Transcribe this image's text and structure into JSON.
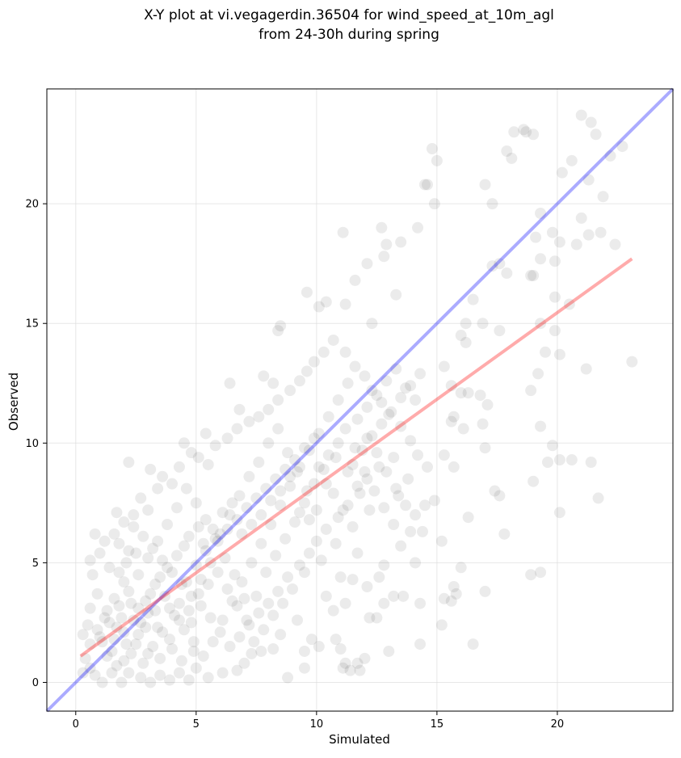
{
  "chart_data": {
    "type": "scatter",
    "title_lines": [
      "X-Y plot at vi.vegagerdin.36504 for wind_speed_at_10m_agl",
      "from 24-30h during spring"
    ],
    "xlabel": "Simulated",
    "ylabel": "Observed",
    "xlim": [
      -1.2,
      24.8
    ],
    "ylim": [
      -1.2,
      24.8
    ],
    "xticks": [
      0,
      5,
      10,
      15,
      20
    ],
    "yticks": [
      0,
      5,
      10,
      15,
      20
    ],
    "grid": true,
    "point_color": "#000000",
    "point_alpha": 0.08,
    "identity_line": {
      "x": [
        -1.2,
        24.8
      ],
      "y": [
        -1.2,
        24.8
      ],
      "color": "#0000ff"
    },
    "fit_line": {
      "x": [
        0.2,
        23.1
      ],
      "y": [
        1.1,
        17.7
      ],
      "color": "#ff0000"
    },
    "points": [
      [
        1.2,
        5.9
      ],
      [
        2.2,
        9.2
      ],
      [
        3.1,
        8.9
      ],
      [
        4.5,
        10.0
      ],
      [
        5.4,
        10.4
      ],
      [
        6.4,
        12.5
      ],
      [
        6.8,
        11.4
      ],
      [
        7.8,
        12.8
      ],
      [
        8.2,
        12.5
      ],
      [
        8.4,
        14.7
      ],
      [
        8.5,
        14.9
      ],
      [
        9.6,
        16.3
      ],
      [
        10.1,
        15.7
      ],
      [
        10.4,
        15.9
      ],
      [
        11.1,
        18.8
      ],
      [
        11.2,
        15.8
      ],
      [
        11.6,
        16.8
      ],
      [
        12.1,
        17.5
      ],
      [
        12.3,
        15.0
      ],
      [
        12.8,
        17.8
      ],
      [
        12.9,
        18.3
      ],
      [
        12.7,
        19.0
      ],
      [
        13.3,
        16.2
      ],
      [
        13.5,
        18.4
      ],
      [
        14.2,
        19.0
      ],
      [
        14.5,
        20.8
      ],
      [
        14.6,
        20.8
      ],
      [
        14.8,
        22.3
      ],
      [
        15.0,
        21.8
      ],
      [
        14.9,
        20.0
      ],
      [
        17.0,
        20.8
      ],
      [
        17.3,
        20.0
      ],
      [
        17.9,
        22.2
      ],
      [
        18.1,
        21.9
      ],
      [
        18.2,
        23.0
      ],
      [
        18.6,
        23.1
      ],
      [
        18.7,
        23.0
      ],
      [
        19.0,
        22.9
      ],
      [
        20.2,
        21.3
      ],
      [
        21.0,
        23.7
      ],
      [
        21.4,
        23.4
      ],
      [
        21.6,
        22.9
      ],
      [
        22.2,
        22.0
      ],
      [
        22.7,
        22.4
      ],
      [
        21.3,
        21.0
      ],
      [
        20.6,
        21.8
      ],
      [
        19.3,
        19.6
      ],
      [
        19.1,
        18.6
      ],
      [
        19.8,
        18.8
      ],
      [
        20.1,
        18.4
      ],
      [
        21.0,
        19.4
      ],
      [
        21.3,
        18.7
      ],
      [
        21.8,
        18.8
      ],
      [
        21.9,
        20.3
      ],
      [
        22.4,
        18.3
      ],
      [
        20.8,
        18.3
      ],
      [
        19.9,
        17.6
      ],
      [
        19.3,
        17.7
      ],
      [
        18.9,
        17.0
      ],
      [
        19.0,
        17.0
      ],
      [
        17.9,
        17.1
      ],
      [
        17.6,
        17.5
      ],
      [
        17.3,
        17.4
      ],
      [
        16.5,
        16.0
      ],
      [
        16.2,
        15.0
      ],
      [
        16.9,
        15.0
      ],
      [
        17.6,
        14.7
      ],
      [
        19.3,
        15.0
      ],
      [
        19.9,
        14.7
      ],
      [
        19.5,
        13.8
      ],
      [
        20.1,
        13.7
      ],
      [
        19.9,
        16.1
      ],
      [
        20.5,
        15.8
      ],
      [
        21.2,
        13.1
      ],
      [
        19.2,
        12.9
      ],
      [
        18.9,
        12.2
      ],
      [
        23.1,
        13.4
      ],
      [
        16.0,
        14.5
      ],
      [
        16.2,
        14.2
      ],
      [
        15.3,
        13.2
      ],
      [
        15.6,
        12.4
      ],
      [
        16.0,
        12.1
      ],
      [
        16.3,
        12.1
      ],
      [
        16.8,
        12.0
      ],
      [
        17.1,
        11.6
      ],
      [
        16.9,
        10.8
      ],
      [
        15.7,
        11.1
      ],
      [
        15.6,
        10.9
      ],
      [
        16.1,
        10.6
      ],
      [
        17.0,
        9.8
      ],
      [
        19.3,
        10.7
      ],
      [
        19.8,
        9.9
      ],
      [
        20.1,
        9.3
      ],
      [
        20.6,
        9.3
      ],
      [
        21.4,
        9.2
      ],
      [
        19.6,
        9.2
      ],
      [
        19.0,
        8.4
      ],
      [
        15.3,
        9.5
      ],
      [
        15.7,
        9.0
      ],
      [
        17.4,
        8.0
      ],
      [
        17.6,
        7.8
      ],
      [
        21.7,
        7.7
      ],
      [
        20.1,
        7.1
      ],
      [
        16.3,
        6.9
      ],
      [
        17.8,
        6.2
      ],
      [
        15.2,
        5.9
      ],
      [
        16.0,
        4.8
      ],
      [
        15.7,
        4.0
      ],
      [
        15.8,
        3.7
      ],
      [
        15.3,
        3.5
      ],
      [
        15.6,
        3.4
      ],
      [
        17.0,
        3.8
      ],
      [
        18.9,
        4.5
      ],
      [
        19.3,
        4.6
      ],
      [
        14.3,
        3.3
      ],
      [
        15.2,
        2.4
      ],
      [
        16.5,
        1.6
      ],
      [
        14.3,
        1.6
      ],
      [
        13.0,
        1.3
      ],
      [
        13.2,
        3.6
      ],
      [
        13.6,
        3.6
      ],
      [
        14.4,
        6.3
      ],
      [
        13.9,
        6.3
      ],
      [
        13.5,
        5.7
      ],
      [
        14.1,
        5.0
      ],
      [
        12.8,
        4.9
      ],
      [
        12.6,
        4.4
      ],
      [
        12.1,
        4.0
      ],
      [
        11.7,
        5.4
      ],
      [
        11.5,
        4.3
      ],
      [
        11.2,
        3.3
      ],
      [
        11.0,
        4.4
      ],
      [
        10.7,
        3.0
      ],
      [
        10.4,
        3.6
      ],
      [
        10.8,
        1.8
      ],
      [
        11.0,
        1.4
      ],
      [
        11.2,
        0.8
      ],
      [
        11.1,
        0.6
      ],
      [
        11.4,
        0.5
      ],
      [
        11.8,
        0.5
      ],
      [
        11.7,
        0.8
      ],
      [
        12.0,
        1.0
      ],
      [
        12.2,
        2.7
      ],
      [
        12.5,
        2.7
      ],
      [
        12.8,
        3.3
      ],
      [
        10.1,
        1.5
      ],
      [
        9.8,
        1.8
      ],
      [
        9.5,
        1.3
      ],
      [
        8.8,
        0.2
      ],
      [
        9.5,
        0.6
      ],
      [
        9.2,
        2.6
      ],
      [
        8.5,
        2.0
      ],
      [
        8.2,
        1.4
      ],
      [
        7.7,
        1.3
      ],
      [
        7.3,
        1.2
      ],
      [
        7.0,
        0.8
      ],
      [
        6.7,
        0.5
      ],
      [
        6.1,
        0.4
      ],
      [
        5.5,
        0.2
      ],
      [
        5.0,
        0.6
      ],
      [
        4.7,
        0.1
      ],
      [
        4.9,
        1.3
      ],
      [
        4.3,
        0.4
      ],
      [
        3.9,
        0.1
      ],
      [
        3.5,
        0.3
      ],
      [
        3.1,
        0.0
      ],
      [
        2.7,
        0.2
      ],
      [
        2.2,
        0.4
      ],
      [
        1.9,
        0.0
      ],
      [
        1.5,
        0.4
      ],
      [
        1.1,
        0.0
      ],
      [
        0.8,
        0.3
      ],
      [
        0.6,
        0.6
      ],
      [
        0.3,
        0.4
      ],
      [
        0.4,
        1.0
      ],
      [
        0.6,
        1.6
      ],
      [
        0.3,
        2.0
      ],
      [
        0.5,
        2.4
      ],
      [
        0.6,
        3.1
      ],
      [
        0.9,
        3.7
      ],
      [
        0.7,
        4.5
      ],
      [
        0.6,
        5.1
      ],
      [
        0.8,
        6.2
      ],
      [
        1.0,
        5.4
      ],
      [
        1.4,
        4.8
      ],
      [
        1.8,
        5.8
      ],
      [
        1.6,
        6.2
      ],
      [
        2.2,
        5.5
      ],
      [
        2.0,
        6.7
      ],
      [
        1.7,
        7.1
      ],
      [
        2.4,
        7.0
      ],
      [
        2.7,
        7.7
      ],
      [
        3.0,
        7.2
      ],
      [
        3.4,
        8.1
      ],
      [
        3.6,
        8.6
      ],
      [
        4.0,
        8.3
      ],
      [
        4.3,
        9.0
      ],
      [
        4.8,
        9.6
      ],
      [
        5.1,
        9.4
      ],
      [
        5.5,
        9.1
      ],
      [
        5.8,
        9.9
      ],
      [
        6.3,
        10.2
      ],
      [
        6.7,
        10.6
      ],
      [
        7.2,
        10.9
      ],
      [
        7.6,
        11.1
      ],
      [
        8.0,
        11.4
      ],
      [
        8.4,
        11.8
      ],
      [
        8.9,
        12.2
      ],
      [
        9.3,
        12.6
      ],
      [
        9.6,
        13.0
      ],
      [
        9.9,
        13.4
      ],
      [
        10.3,
        13.8
      ],
      [
        10.7,
        14.3
      ],
      [
        11.2,
        13.8
      ],
      [
        11.6,
        13.2
      ],
      [
        12.0,
        12.8
      ],
      [
        12.3,
        12.2
      ],
      [
        12.7,
        11.7
      ],
      [
        13.0,
        11.2
      ],
      [
        13.5,
        10.7
      ],
      [
        13.9,
        10.1
      ],
      [
        14.2,
        9.5
      ],
      [
        14.6,
        9.0
      ],
      [
        13.2,
        9.4
      ],
      [
        12.6,
        9.0
      ],
      [
        12.1,
        8.5
      ],
      [
        11.8,
        7.9
      ],
      [
        11.3,
        7.4
      ],
      [
        10.9,
        6.9
      ],
      [
        10.4,
        6.4
      ],
      [
        10.0,
        5.9
      ],
      [
        9.7,
        5.4
      ],
      [
        9.3,
        4.9
      ],
      [
        8.8,
        4.4
      ],
      [
        8.4,
        3.8
      ],
      [
        8.0,
        3.3
      ],
      [
        7.6,
        2.9
      ],
      [
        7.2,
        2.4
      ],
      [
        6.8,
        1.9
      ],
      [
        6.4,
        1.5
      ],
      [
        6.0,
        2.1
      ],
      [
        5.6,
        2.7
      ],
      [
        5.2,
        3.2
      ],
      [
        4.8,
        3.6
      ],
      [
        4.4,
        4.1
      ],
      [
        4.0,
        4.6
      ],
      [
        3.6,
        5.1
      ],
      [
        3.2,
        5.6
      ],
      [
        2.8,
        6.1
      ],
      [
        2.4,
        6.5
      ],
      [
        2.0,
        4.2
      ],
      [
        1.6,
        3.5
      ],
      [
        1.2,
        2.7
      ],
      [
        1.0,
        1.9
      ],
      [
        1.5,
        1.3
      ],
      [
        2.0,
        0.9
      ],
      [
        2.5,
        1.6
      ],
      [
        2.9,
        2.3
      ],
      [
        3.3,
        3.0
      ],
      [
        3.7,
        3.6
      ],
      [
        4.1,
        2.8
      ],
      [
        4.5,
        2.2
      ],
      [
        4.9,
        1.7
      ],
      [
        5.3,
        1.1
      ],
      [
        5.7,
        1.7
      ],
      [
        6.1,
        2.6
      ],
      [
        6.5,
        3.4
      ],
      [
        6.9,
        4.2
      ],
      [
        7.3,
        5.0
      ],
      [
        7.7,
        5.8
      ],
      [
        8.1,
        6.6
      ],
      [
        8.5,
        7.4
      ],
      [
        8.9,
        8.2
      ],
      [
        9.3,
        9.0
      ],
      [
        9.7,
        9.7
      ],
      [
        10.1,
        10.4
      ],
      [
        10.5,
        11.1
      ],
      [
        10.9,
        11.8
      ],
      [
        11.3,
        12.5
      ],
      [
        11.7,
        11.0
      ],
      [
        12.1,
        10.2
      ],
      [
        12.5,
        9.6
      ],
      [
        12.9,
        8.8
      ],
      [
        13.3,
        8.1
      ],
      [
        13.7,
        7.4
      ],
      [
        14.1,
        7.0
      ],
      [
        14.5,
        7.4
      ],
      [
        14.9,
        7.6
      ],
      [
        13.8,
        8.5
      ],
      [
        13.4,
        7.8
      ],
      [
        12.2,
        7.2
      ],
      [
        11.5,
        6.5
      ],
      [
        10.8,
        5.8
      ],
      [
        10.2,
        5.1
      ],
      [
        9.5,
        4.6
      ],
      [
        9.0,
        3.9
      ],
      [
        8.6,
        3.3
      ],
      [
        8.2,
        2.8
      ],
      [
        7.8,
        2.2
      ],
      [
        7.4,
        1.7
      ],
      [
        7.0,
        3.5
      ],
      [
        6.6,
        4.5
      ],
      [
        6.2,
        5.2
      ],
      [
        5.8,
        6.0
      ],
      [
        5.4,
        6.8
      ],
      [
        5.0,
        7.5
      ],
      [
        4.6,
        8.1
      ],
      [
        4.2,
        7.3
      ],
      [
        3.8,
        6.6
      ],
      [
        3.4,
        5.9
      ],
      [
        3.0,
        5.2
      ],
      [
        2.6,
        4.5
      ],
      [
        2.2,
        3.8
      ],
      [
        1.8,
        3.2
      ],
      [
        1.4,
        2.5
      ],
      [
        1.1,
        1.7
      ],
      [
        1.3,
        1.1
      ],
      [
        1.7,
        0.7
      ],
      [
        2.3,
        1.2
      ],
      [
        2.8,
        0.8
      ],
      [
        3.2,
        1.5
      ],
      [
        3.6,
        2.1
      ],
      [
        4.0,
        1.4
      ],
      [
        4.4,
        0.9
      ],
      [
        4.8,
        2.5
      ],
      [
        5.2,
        4.3
      ],
      [
        5.6,
        5.0
      ],
      [
        6.0,
        6.2
      ],
      [
        6.4,
        7.0
      ],
      [
        6.8,
        7.8
      ],
      [
        7.2,
        8.6
      ],
      [
        7.6,
        9.2
      ],
      [
        8.0,
        10.0
      ],
      [
        8.4,
        10.6
      ],
      [
        8.8,
        9.6
      ],
      [
        9.2,
        8.8
      ],
      [
        9.6,
        8.0
      ],
      [
        10.0,
        7.2
      ],
      [
        10.4,
        8.3
      ],
      [
        10.8,
        9.4
      ],
      [
        11.2,
        10.6
      ],
      [
        11.6,
        9.8
      ],
      [
        12.0,
        8.8
      ],
      [
        12.4,
        8.0
      ],
      [
        12.8,
        7.3
      ],
      [
        13.2,
        6.6
      ],
      [
        3.1,
        3.7
      ],
      [
        3.3,
        4.1
      ],
      [
        3.5,
        4.4
      ],
      [
        2.6,
        3.1
      ],
      [
        2.9,
        3.4
      ],
      [
        3.8,
        4.8
      ],
      [
        4.2,
        5.3
      ],
      [
        4.5,
        5.7
      ],
      [
        4.7,
        6.1
      ],
      [
        5.1,
        6.5
      ],
      [
        5.4,
        5.5
      ],
      [
        5.9,
        5.9
      ],
      [
        6.3,
        6.4
      ],
      [
        6.7,
        6.8
      ],
      [
        7.1,
        7.3
      ],
      [
        7.5,
        7.7
      ],
      [
        7.9,
        8.1
      ],
      [
        8.3,
        8.5
      ],
      [
        8.7,
        8.9
      ],
      [
        9.1,
        9.3
      ],
      [
        9.5,
        9.8
      ],
      [
        9.9,
        10.2
      ],
      [
        2.0,
        2.1
      ],
      [
        2.4,
        2.6
      ],
      [
        1.6,
        1.8
      ],
      [
        1.9,
        2.7
      ],
      [
        2.3,
        3.3
      ],
      [
        2.7,
        2.5
      ],
      [
        3.0,
        2.9
      ],
      [
        3.4,
        2.3
      ],
      [
        3.9,
        3.1
      ],
      [
        4.3,
        3.3
      ],
      [
        4.6,
        4.2
      ],
      [
        5.0,
        4.9
      ],
      [
        5.3,
        5.8
      ],
      [
        5.7,
        6.4
      ],
      [
        6.1,
        7.1
      ],
      [
        6.5,
        7.5
      ],
      [
        6.9,
        6.2
      ],
      [
        7.3,
        6.6
      ],
      [
        7.7,
        7.0
      ],
      [
        8.1,
        7.6
      ],
      [
        8.5,
        8.0
      ],
      [
        8.9,
        8.6
      ],
      [
        9.3,
        7.1
      ],
      [
        9.7,
        6.8
      ],
      [
        10.1,
        9.0
      ],
      [
        10.5,
        9.5
      ],
      [
        10.9,
        10.0
      ],
      [
        11.3,
        8.8
      ],
      [
        11.7,
        8.2
      ],
      [
        12.1,
        11.5
      ],
      [
        12.5,
        12.0
      ],
      [
        12.9,
        12.6
      ],
      [
        13.3,
        13.1
      ],
      [
        13.7,
        12.3
      ],
      [
        14.1,
        11.8
      ],
      [
        1.8,
        4.6
      ],
      [
        2.1,
        5.0
      ],
      [
        2.5,
        5.4
      ],
      [
        0.9,
        2.2
      ],
      [
        1.3,
        3.0
      ],
      [
        1.7,
        2.3
      ],
      [
        2.1,
        1.6
      ],
      [
        2.6,
        2.0
      ],
      [
        3.0,
        1.2
      ],
      [
        3.5,
        1.0
      ],
      [
        3.9,
        1.8
      ],
      [
        4.3,
        2.6
      ],
      [
        4.7,
        3.0
      ],
      [
        5.1,
        3.7
      ],
      [
        5.5,
        4.1
      ],
      [
        5.9,
        4.6
      ],
      [
        6.3,
        3.9
      ],
      [
        6.7,
        3.2
      ],
      [
        7.1,
        2.6
      ],
      [
        7.5,
        3.6
      ],
      [
        7.9,
        4.6
      ],
      [
        8.3,
        5.3
      ],
      [
        8.7,
        6.0
      ],
      [
        9.1,
        6.7
      ],
      [
        9.5,
        7.5
      ],
      [
        9.9,
        8.3
      ],
      [
        10.3,
        8.9
      ],
      [
        10.7,
        7.9
      ],
      [
        11.1,
        7.2
      ],
      [
        11.5,
        9.1
      ],
      [
        11.9,
        9.7
      ],
      [
        12.3,
        10.3
      ],
      [
        12.7,
        10.8
      ],
      [
        13.1,
        11.3
      ],
      [
        13.5,
        11.9
      ],
      [
        13.9,
        12.4
      ],
      [
        14.3,
        12.9
      ]
    ]
  }
}
